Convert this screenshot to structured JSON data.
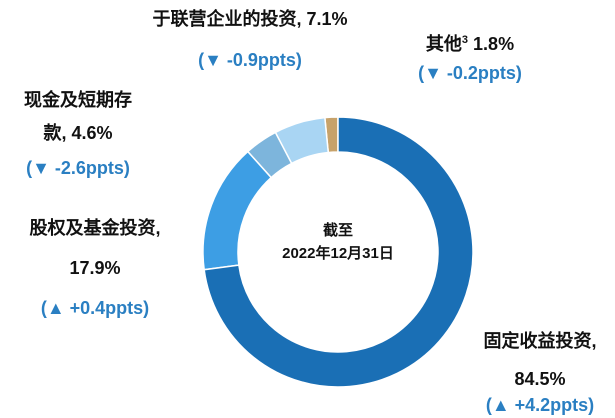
{
  "chart_data": {
    "type": "donut",
    "center_text": [
      "截至",
      "2022年12月31日"
    ],
    "categories": [
      "固定收益投资,",
      "股权及基金投资,",
      "现金及短期存款,",
      "于联营企业的投资,",
      "其他"
    ],
    "category_notes": [
      null,
      null,
      null,
      null,
      "3"
    ],
    "values": [
      84.5,
      17.9,
      4.6,
      7.1,
      1.8
    ],
    "value_labels": [
      "84.5%",
      "17.9%",
      "4.6%",
      "7.1%",
      "1.8%"
    ],
    "changes": [
      "(▲ +4.2ppts)",
      "(▲ +0.4ppts)",
      "(▼ -2.6ppts)",
      "(▼ -0.9ppts)",
      "(▼ -0.2ppts)"
    ],
    "colors": [
      "#1a6fb5",
      "#3d9ee4",
      "#7db5dc",
      "#a9d5f3",
      "#c7a26a"
    ],
    "change_color": "#2a7fc2"
  }
}
